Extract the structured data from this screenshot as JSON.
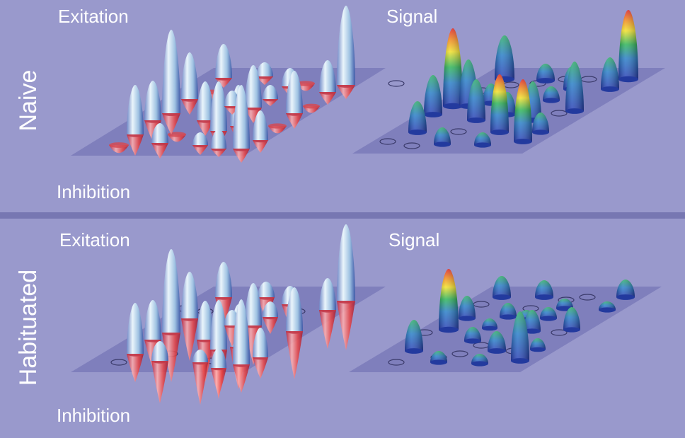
{
  "panels": [
    {
      "row_label": "Naive",
      "excitation_label": "Exitation",
      "inhibition_label": "Inhibition",
      "signal_label": "Signal"
    },
    {
      "row_label": "Habituated",
      "excitation_label": "Exitation",
      "inhibition_label": "Inhibition",
      "signal_label": "Signal"
    }
  ],
  "colors": {
    "background": "#9999cc",
    "divider": "#7777b2",
    "plane": "#7a7ab8",
    "excitation": "#cfe4f3",
    "inhibition": "#e23a3a"
  }
}
